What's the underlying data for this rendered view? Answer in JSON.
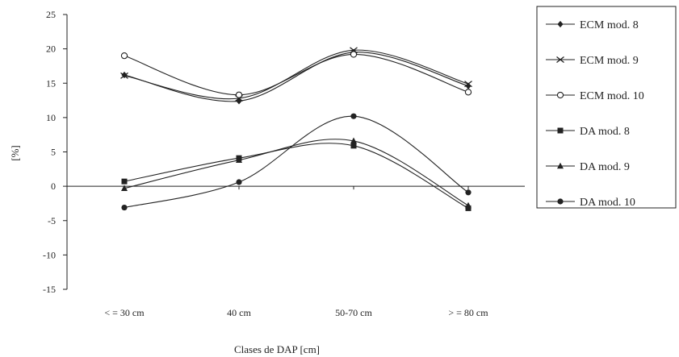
{
  "chart_data": {
    "type": "line",
    "title": "",
    "xlabel": "Clases de DAP [cm]",
    "ylabel": "[%]",
    "categories": [
      "< = 30 cm",
      "40 cm",
      "50-70 cm",
      "> = 80 cm"
    ],
    "ylim": [
      -15,
      25
    ],
    "yticks": [
      25,
      20,
      15,
      10,
      5,
      0,
      -5,
      -10,
      -15
    ],
    "grid": false,
    "legend_position": "right",
    "series": [
      {
        "name": "ECM mod. 8",
        "marker": "diamond",
        "values": [
          16.2,
          12.4,
          19.5,
          14.6
        ]
      },
      {
        "name": "ECM mod. 9",
        "marker": "cross",
        "values": [
          16.1,
          12.8,
          19.8,
          14.9
        ]
      },
      {
        "name": "ECM mod. 10",
        "marker": "open-circle",
        "values": [
          19.0,
          13.3,
          19.2,
          13.7
        ]
      },
      {
        "name": "DA mod. 8",
        "marker": "square",
        "values": [
          0.7,
          4.1,
          5.9,
          -3.2
        ]
      },
      {
        "name": "DA mod. 9",
        "marker": "triangle",
        "values": [
          -0.3,
          3.8,
          6.6,
          -2.8
        ]
      },
      {
        "name": "DA mod. 10",
        "marker": "filled-circle",
        "values": [
          -3.1,
          0.6,
          10.2,
          -0.9
        ]
      }
    ],
    "line_color": "#222222"
  }
}
